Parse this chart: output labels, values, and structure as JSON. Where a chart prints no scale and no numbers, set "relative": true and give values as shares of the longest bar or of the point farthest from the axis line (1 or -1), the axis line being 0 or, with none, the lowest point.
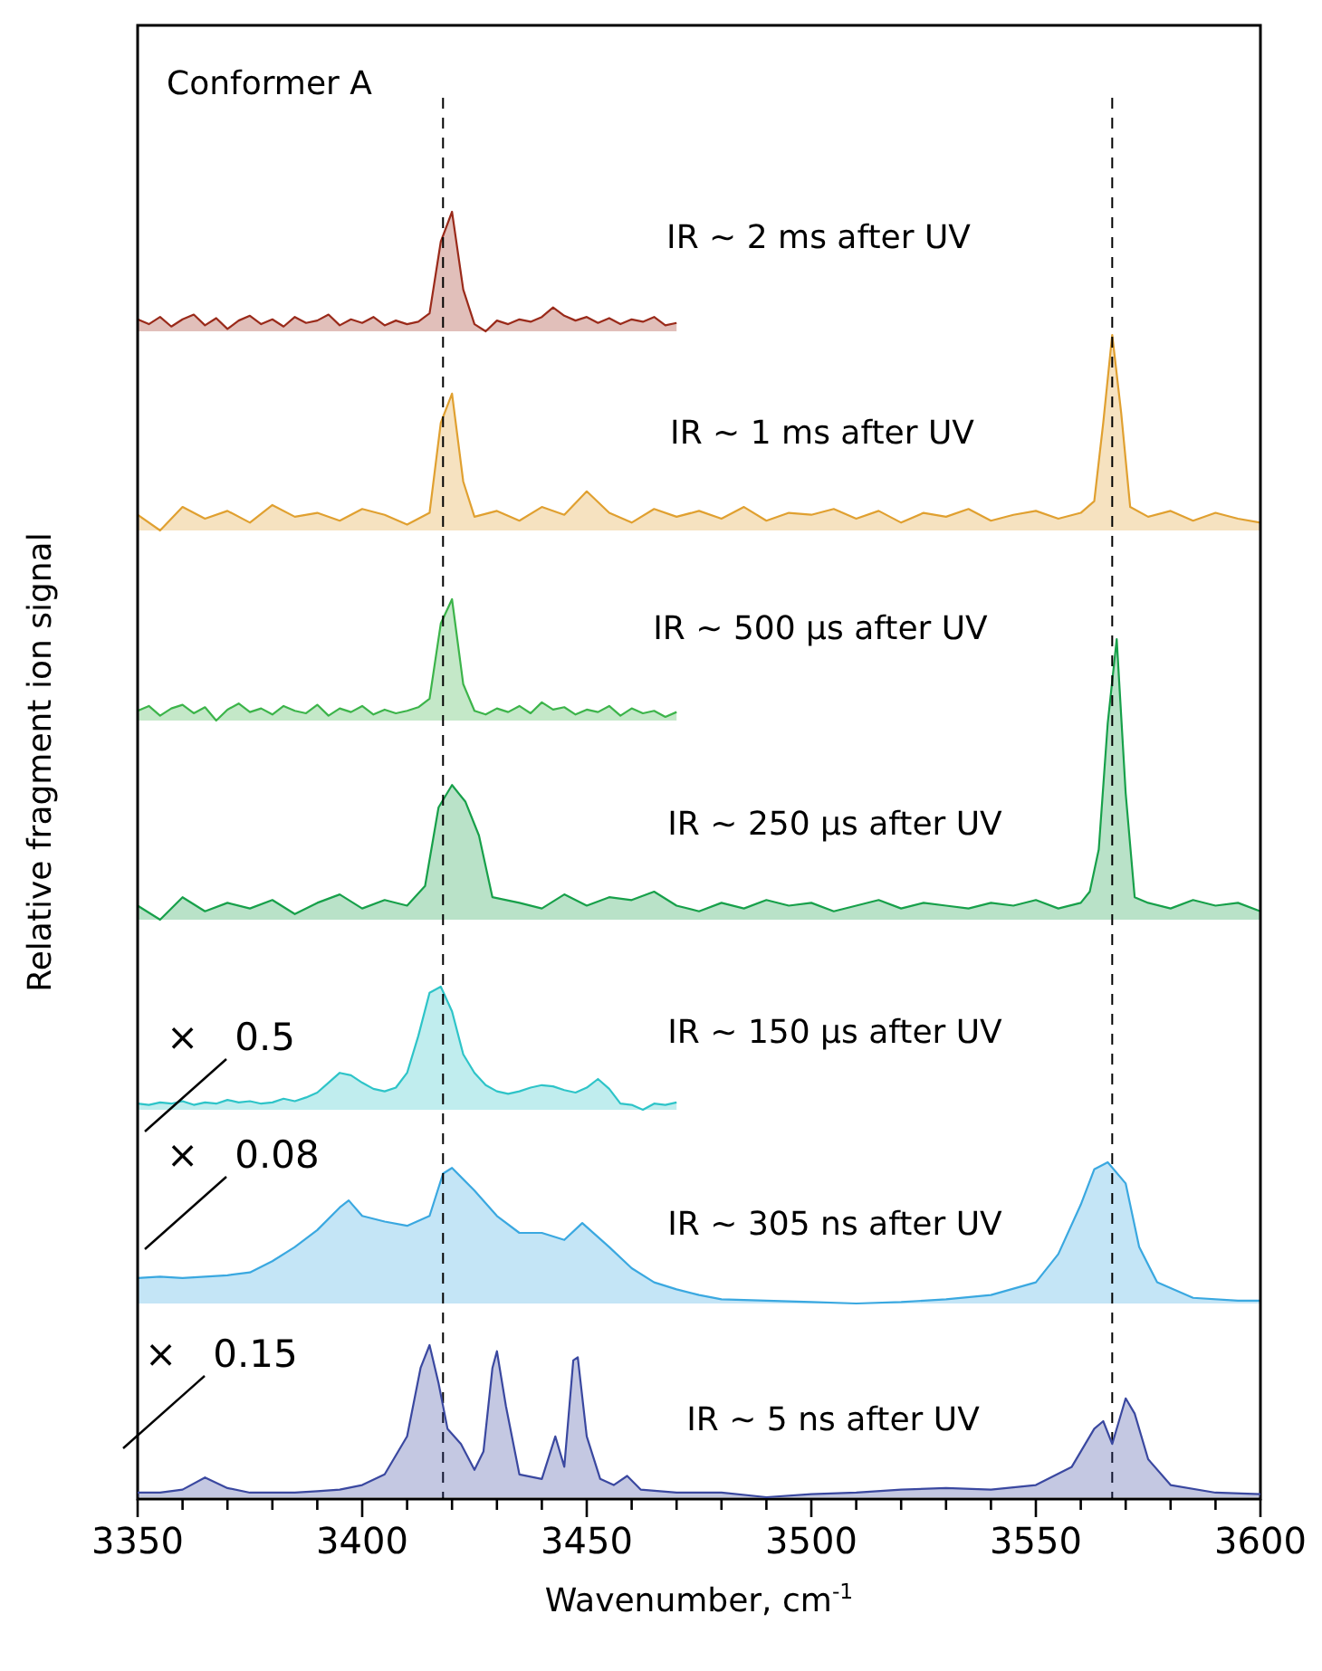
{
  "chart_data": [
    {
      "type": "area",
      "title": "Conformer A",
      "relative": true,
      "tick_labels": false,
      "xlim": [
        3350,
        3600
      ],
      "color": "#9a2a1a",
      "annotations": [
        "IR ~ 2 ms after UV"
      ],
      "x": [
        3350,
        3352.5,
        3355,
        3357.5,
        3360,
        3362.5,
        3365,
        3367.5,
        3370,
        3372.5,
        3375,
        3377.5,
        3380,
        3382.5,
        3385,
        3387.5,
        3390,
        3392.5,
        3395,
        3397.5,
        3400,
        3402.5,
        3405,
        3407.5,
        3410,
        3412.5,
        3415,
        3417.5,
        3420,
        3422.5,
        3425,
        3427.5,
        3430,
        3432.5,
        3435,
        3437.5,
        3440,
        3442.5,
        3445,
        3447.5,
        3450,
        3452.5,
        3455,
        3457.5,
        3460,
        3462.5,
        3465,
        3467.5,
        3470
      ],
      "values": [
        0.1,
        0.06,
        0.12,
        0.04,
        0.1,
        0.14,
        0.05,
        0.11,
        0.02,
        0.09,
        0.13,
        0.06,
        0.1,
        0.04,
        0.12,
        0.07,
        0.09,
        0.14,
        0.05,
        0.1,
        0.07,
        0.12,
        0.05,
        0.09,
        0.06,
        0.08,
        0.15,
        0.75,
        1,
        0.35,
        0.06,
        0,
        0.09,
        0.06,
        0.1,
        0.08,
        0.12,
        0.2,
        0.13,
        0.09,
        0.12,
        0.07,
        0.11,
        0.06,
        0.1,
        0.08,
        0.12,
        0.05,
        0.07
      ]
    },
    {
      "type": "area",
      "relative": true,
      "tick_labels": false,
      "xlim": [
        3350,
        3600
      ],
      "color": "#e0a030",
      "annotations": [
        "IR ~ 1 ms after UV"
      ],
      "x": [
        3350,
        3355,
        3360,
        3365,
        3370,
        3375,
        3380,
        3385,
        3390,
        3395,
        3400,
        3405,
        3410,
        3415,
        3417.5,
        3420,
        3422.5,
        3425,
        3430,
        3435,
        3440,
        3445,
        3450,
        3455,
        3460,
        3465,
        3470,
        3475,
        3480,
        3485,
        3490,
        3495,
        3500,
        3505,
        3510,
        3515,
        3520,
        3525,
        3530,
        3535,
        3540,
        3545,
        3550,
        3555,
        3560,
        3563,
        3565,
        3567,
        3569,
        3571,
        3575,
        3580,
        3585,
        3590,
        3595,
        3600
      ],
      "values": [
        0.08,
        0,
        0.12,
        0.06,
        0.1,
        0.04,
        0.13,
        0.07,
        0.09,
        0.05,
        0.11,
        0.08,
        0.03,
        0.09,
        0.55,
        0.7,
        0.25,
        0.07,
        0.1,
        0.05,
        0.12,
        0.08,
        0.2,
        0.09,
        0.04,
        0.11,
        0.07,
        0.1,
        0.06,
        0.12,
        0.05,
        0.09,
        0.08,
        0.11,
        0.06,
        0.1,
        0.04,
        0.09,
        0.07,
        0.11,
        0.05,
        0.08,
        0.1,
        0.06,
        0.09,
        0.15,
        0.55,
        1,
        0.6,
        0.12,
        0.07,
        0.1,
        0.05,
        0.09,
        0.06,
        0.04
      ]
    },
    {
      "type": "area",
      "relative": true,
      "tick_labels": false,
      "xlim": [
        3350,
        3600
      ],
      "color": "#3cb44a",
      "annotations": [
        "IR ~ 500 µs after UV"
      ],
      "x": [
        3350,
        3352.5,
        3355,
        3357.5,
        3360,
        3362.5,
        3365,
        3367.5,
        3370,
        3372.5,
        3375,
        3377.5,
        3380,
        3382.5,
        3385,
        3387.5,
        3390,
        3392.5,
        3395,
        3397.5,
        3400,
        3402.5,
        3405,
        3407.5,
        3410,
        3412.5,
        3415,
        3417.5,
        3420,
        3422.5,
        3425,
        3427.5,
        3430,
        3432.5,
        3435,
        3437.5,
        3440,
        3442.5,
        3445,
        3447.5,
        3450,
        3452.5,
        3455,
        3457.5,
        3460,
        3462.5,
        3465,
        3467.5,
        3470
      ],
      "values": [
        0.08,
        0.12,
        0.04,
        0.1,
        0.13,
        0.06,
        0.11,
        0,
        0.09,
        0.14,
        0.07,
        0.1,
        0.05,
        0.12,
        0.08,
        0.06,
        0.13,
        0.04,
        0.1,
        0.07,
        0.12,
        0.05,
        0.09,
        0.06,
        0.08,
        0.11,
        0.18,
        0.8,
        1,
        0.3,
        0.08,
        0.05,
        0.1,
        0.07,
        0.12,
        0.06,
        0.15,
        0.09,
        0.11,
        0.05,
        0.09,
        0.07,
        0.12,
        0.04,
        0.1,
        0.06,
        0.08,
        0.03,
        0.07
      ]
    },
    {
      "type": "area",
      "relative": true,
      "tick_labels": false,
      "xlim": [
        3350,
        3600
      ],
      "color": "#17a04a",
      "ylabel": "Relative fragment ion signal",
      "annotations": [
        "IR ~ 250 µs after UV"
      ],
      "x": [
        3350,
        3355,
        3360,
        3365,
        3370,
        3375,
        3380,
        3385,
        3390,
        3395,
        3400,
        3405,
        3410,
        3414,
        3417,
        3420,
        3423,
        3426,
        3429,
        3435,
        3440,
        3445,
        3450,
        3455,
        3460,
        3465,
        3470,
        3475,
        3480,
        3485,
        3490,
        3495,
        3500,
        3505,
        3510,
        3515,
        3520,
        3525,
        3530,
        3535,
        3540,
        3545,
        3550,
        3555,
        3560,
        3562,
        3564,
        3566,
        3568,
        3570,
        3572,
        3575,
        3580,
        3585,
        3590,
        3595,
        3600
      ],
      "values": [
        0.05,
        0,
        0.08,
        0.03,
        0.06,
        0.04,
        0.07,
        0.02,
        0.06,
        0.09,
        0.04,
        0.07,
        0.05,
        0.12,
        0.4,
        0.48,
        0.42,
        0.3,
        0.08,
        0.06,
        0.04,
        0.09,
        0.05,
        0.08,
        0.07,
        0.1,
        0.05,
        0.03,
        0.06,
        0.04,
        0.07,
        0.05,
        0.06,
        0.03,
        0.05,
        0.07,
        0.04,
        0.06,
        0.05,
        0.04,
        0.06,
        0.05,
        0.07,
        0.04,
        0.06,
        0.1,
        0.25,
        0.7,
        1,
        0.45,
        0.08,
        0.06,
        0.04,
        0.07,
        0.05,
        0.06,
        0.03
      ]
    },
    {
      "type": "area",
      "relative": true,
      "tick_labels": false,
      "xlim": [
        3350,
        3600
      ],
      "color": "#2ec4c8",
      "annotations": [
        "IR ~ 150 µs after UV",
        "× 0.5"
      ],
      "x": [
        3350,
        3352.5,
        3355,
        3357.5,
        3360,
        3362.5,
        3365,
        3367.5,
        3370,
        3372.5,
        3375,
        3377.5,
        3380,
        3382.5,
        3385,
        3387.5,
        3390,
        3392.5,
        3395,
        3397.5,
        3400,
        3402.5,
        3405,
        3407.5,
        3410,
        3412.5,
        3415,
        3417.5,
        3420,
        3422.5,
        3425,
        3427.5,
        3430,
        3432.5,
        3435,
        3437.5,
        3440,
        3442.5,
        3445,
        3447.5,
        3450,
        3452.5,
        3455,
        3457.5,
        3460,
        3462.5,
        3465,
        3467.5,
        3470
      ],
      "values": [
        0.05,
        0.04,
        0.06,
        0.05,
        0.07,
        0.04,
        0.06,
        0.05,
        0.08,
        0.06,
        0.07,
        0.05,
        0.06,
        0.09,
        0.07,
        0.1,
        0.14,
        0.22,
        0.3,
        0.28,
        0.22,
        0.17,
        0.15,
        0.18,
        0.3,
        0.6,
        0.95,
        1,
        0.8,
        0.45,
        0.3,
        0.2,
        0.15,
        0.13,
        0.15,
        0.18,
        0.2,
        0.19,
        0.16,
        0.14,
        0.18,
        0.25,
        0.17,
        0.05,
        0.04,
        0,
        0.05,
        0.04,
        0.06
      ]
    },
    {
      "type": "area",
      "relative": true,
      "tick_labels": false,
      "xlim": [
        3350,
        3600
      ],
      "color": "#3aa8e0",
      "annotations": [
        "IR ~ 305 ns after UV",
        "× 0.08"
      ],
      "x": [
        3350,
        3355,
        3360,
        3365,
        3370,
        3375,
        3380,
        3385,
        3390,
        3395,
        3397,
        3400,
        3405,
        3410,
        3415,
        3418,
        3420,
        3425,
        3430,
        3435,
        3440,
        3445,
        3449,
        3455,
        3460,
        3465,
        3470,
        3475,
        3480,
        3490,
        3500,
        3510,
        3520,
        3530,
        3540,
        3550,
        3555,
        3560,
        3563,
        3566,
        3570,
        3573,
        3577,
        3585,
        3595,
        3600
      ],
      "values": [
        0.18,
        0.19,
        0.18,
        0.19,
        0.2,
        0.22,
        0.3,
        0.4,
        0.52,
        0.68,
        0.73,
        0.62,
        0.58,
        0.55,
        0.62,
        0.92,
        0.96,
        0.8,
        0.62,
        0.5,
        0.5,
        0.45,
        0.57,
        0.4,
        0.25,
        0.15,
        0.1,
        0.06,
        0.03,
        0.02,
        0.01,
        0,
        0.01,
        0.03,
        0.06,
        0.15,
        0.35,
        0.7,
        0.95,
        1,
        0.85,
        0.4,
        0.15,
        0.04,
        0.02,
        0.02
      ]
    },
    {
      "type": "area",
      "relative": true,
      "tick_labels": "x",
      "xlim": [
        3350,
        3600
      ],
      "xlabel": "Wavenumber, cm$^{-1}$",
      "color": "#3a48a0",
      "annotations": [
        "IR ~ 5 ns after UV",
        "× 0.15"
      ],
      "ref_lines": [
        {
          "axis": "x",
          "value": 3418,
          "line_style": "dashed",
          "color": "#000000"
        },
        {
          "axis": "x",
          "value": 3567,
          "line_style": "dashed",
          "color": "#000000"
        }
      ],
      "xticks": [
        3350,
        {
          "value": 3360,
          "label": null
        },
        {
          "value": 3370,
          "label": null
        },
        {
          "value": 3380,
          "label": null
        },
        {
          "value": 3390,
          "label": null
        },
        3400,
        {
          "value": 3410,
          "label": null
        },
        {
          "value": 3420,
          "label": null
        },
        {
          "value": 3430,
          "label": null
        },
        {
          "value": 3440,
          "label": null
        },
        3450,
        {
          "value": 3460,
          "label": null
        },
        {
          "value": 3470,
          "label": null
        },
        {
          "value": 3480,
          "label": null
        },
        {
          "value": 3490,
          "label": null
        },
        3500,
        {
          "value": 3510,
          "label": null
        },
        {
          "value": 3520,
          "label": null
        },
        {
          "value": 3530,
          "label": null
        },
        {
          "value": 3540,
          "label": null
        },
        3550,
        {
          "value": 3560,
          "label": null
        },
        {
          "value": 3570,
          "label": null
        },
        {
          "value": 3580,
          "label": null
        },
        {
          "value": 3590,
          "label": null
        },
        3600
      ],
      "x": [
        3350,
        3355,
        3360,
        3365,
        3370,
        3375,
        3380,
        3385,
        3390,
        3395,
        3400,
        3405,
        3410,
        3413,
        3415,
        3417,
        3419,
        3422,
        3425,
        3427,
        3429,
        3430,
        3432,
        3435,
        3440,
        3443,
        3445,
        3447,
        3448,
        3450,
        3453,
        3456,
        3459,
        3462,
        3470,
        3480,
        3490,
        3500,
        3510,
        3520,
        3530,
        3540,
        3550,
        3558,
        3563,
        3565,
        3567,
        3570,
        3572,
        3575,
        3580,
        3590,
        3600
      ],
      "values": [
        0.03,
        0.03,
        0.05,
        0.13,
        0.06,
        0.03,
        0.03,
        0.03,
        0.04,
        0.05,
        0.08,
        0.15,
        0.4,
        0.85,
        1,
        0.75,
        0.45,
        0.35,
        0.18,
        0.3,
        0.85,
        0.96,
        0.6,
        0.15,
        0.12,
        0.4,
        0.2,
        0.9,
        0.92,
        0.4,
        0.12,
        0.08,
        0.14,
        0.05,
        0.03,
        0.03,
        0,
        0.02,
        0.03,
        0.05,
        0.06,
        0.05,
        0.08,
        0.2,
        0.45,
        0.5,
        0.35,
        0.65,
        0.55,
        0.25,
        0.08,
        0.03,
        0.02
      ]
    }
  ]
}
